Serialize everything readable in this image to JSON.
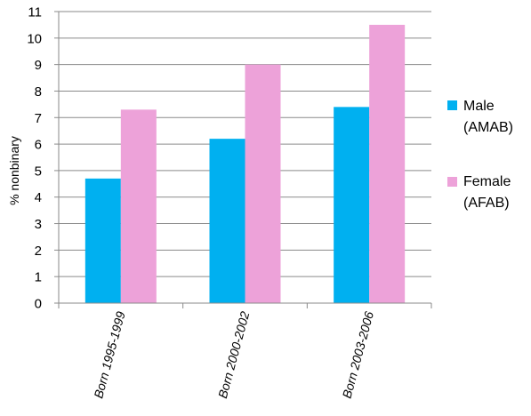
{
  "chart_data": {
    "type": "bar",
    "title": "",
    "xlabel": "",
    "ylabel": "% nonbinary",
    "ylim": [
      0,
      11
    ],
    "yticks": [
      0,
      1,
      2,
      3,
      4,
      5,
      6,
      7,
      8,
      9,
      10,
      11
    ],
    "grid": true,
    "legend_position": "right",
    "categories": [
      "Born 1995-1999",
      "Born 2000-2002",
      "Born 2003-2006"
    ],
    "series": [
      {
        "name_line1": "Male",
        "name_line2": "(AMAB)",
        "color": "#00b0f0",
        "values": [
          4.7,
          6.2,
          7.4
        ]
      },
      {
        "name_line1": "Female",
        "name_line2": "(AFAB)",
        "color": "#eda2d9",
        "values": [
          7.3,
          9.0,
          10.5
        ]
      }
    ]
  }
}
